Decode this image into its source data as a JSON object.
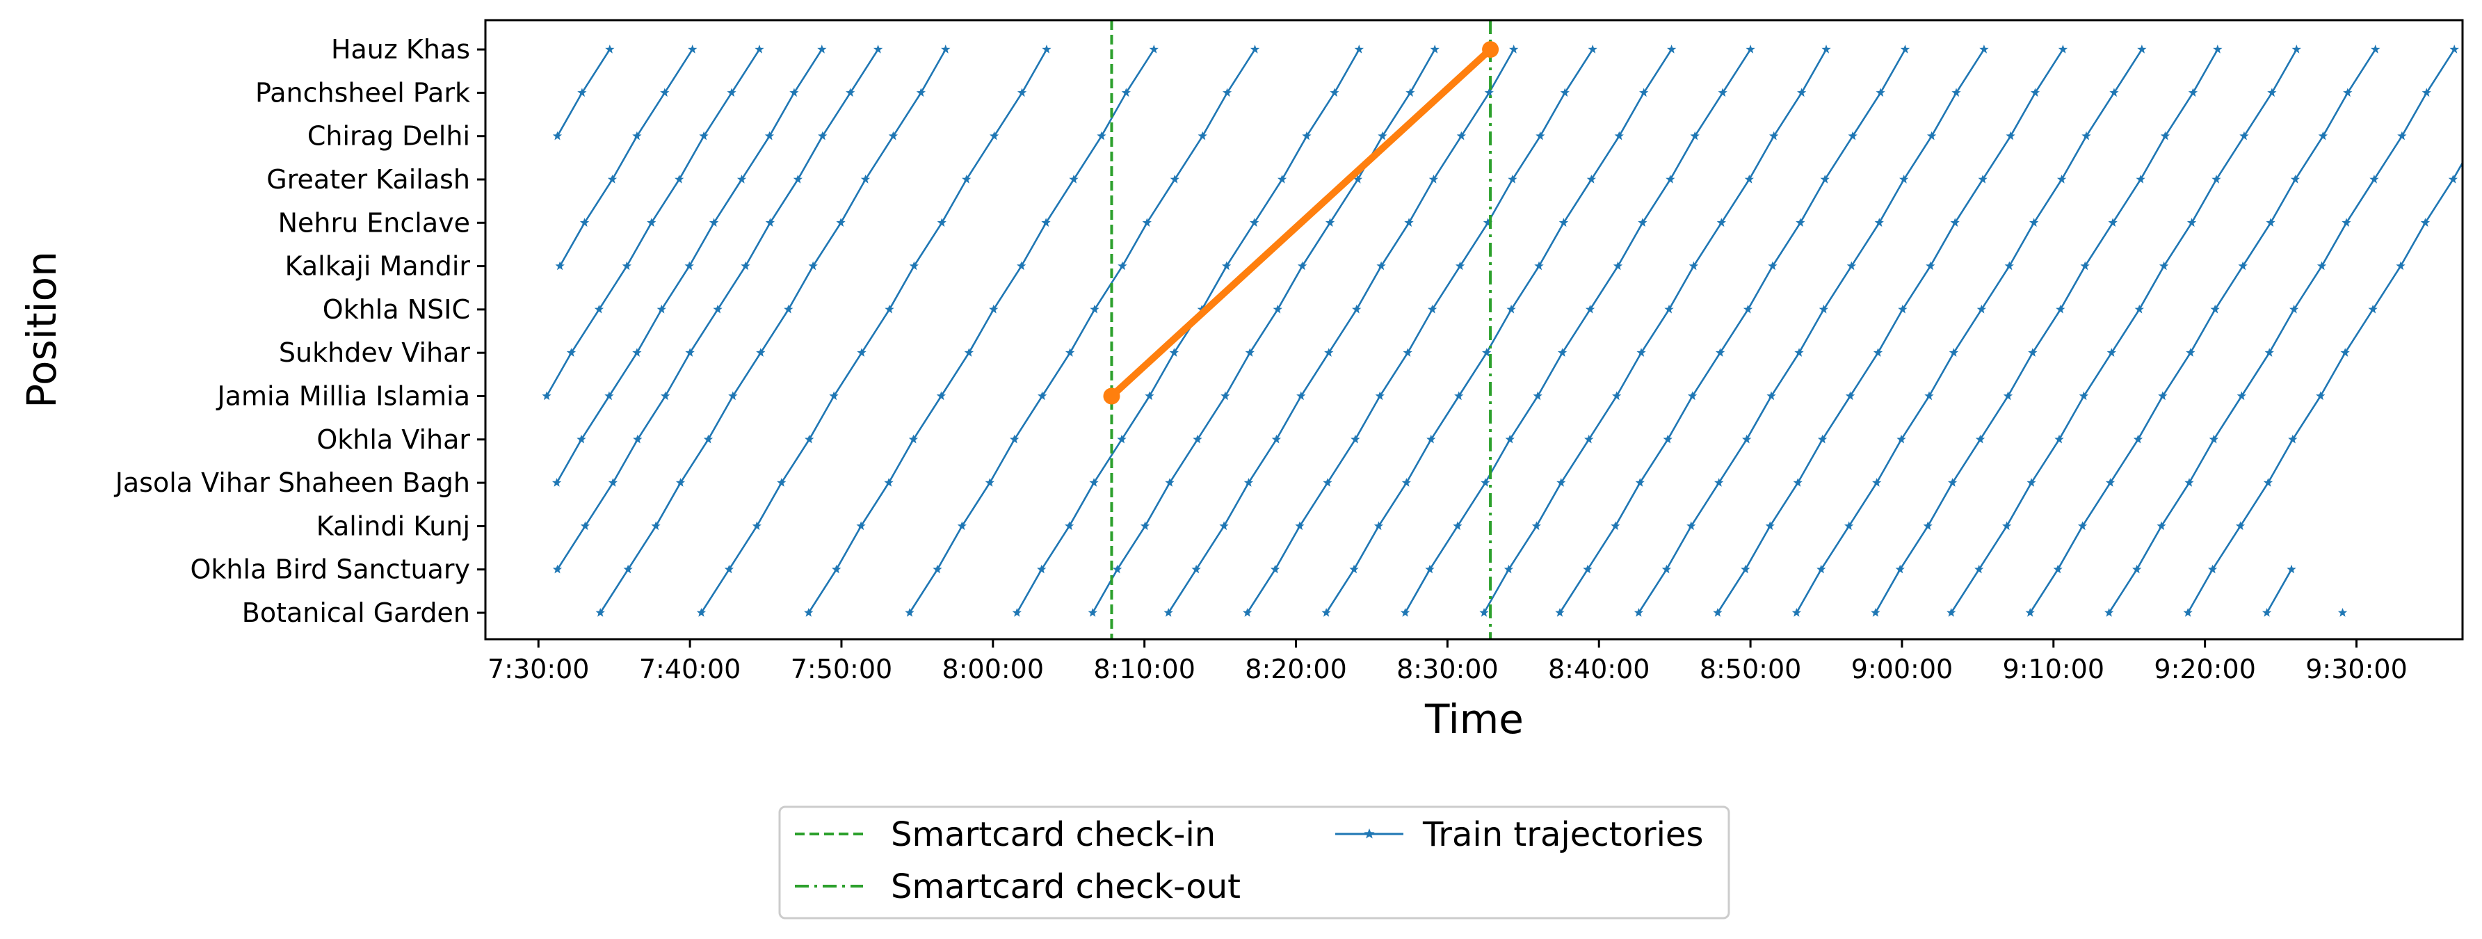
{
  "chart_data": {
    "type": "line",
    "title": "",
    "xlabel": "Time",
    "ylabel": "Position",
    "x_ticks": [
      "7:30:00",
      "7:40:00",
      "7:50:00",
      "8:00:00",
      "8:10:00",
      "8:20:00",
      "8:30:00",
      "8:40:00",
      "8:50:00",
      "9:00:00",
      "9:10:00",
      "9:20:00",
      "9:30:00"
    ],
    "xlim": [
      "7:26:30",
      "9:37:00"
    ],
    "stations": [
      "Botanical Garden",
      "Okhla Bird Sanctuary",
      "Kalindi Kunj",
      "Jasola Vihar Shaheen Bagh",
      "Okhla Vihar",
      "Jamia Millia Islamia",
      "Sukhdev Vihar",
      "Okhla NSIC",
      "Kalkaji Mandir",
      "Nehru Enclave",
      "Greater Kailash",
      "Chirag Delhi",
      "Panchsheel Park",
      "Hauz Khas"
    ],
    "legend": {
      "placement": "below",
      "entries": [
        "Smartcard check-in",
        "Smartcard check-out",
        "Train trajectories"
      ]
    },
    "check_in": {
      "time": "8:07:50",
      "station": "Jamia Millia Islamia",
      "color": "#2ca02c",
      "style": "dashed"
    },
    "check_out": {
      "time": "8:32:50",
      "station": "Hauz Khas",
      "color": "#2ca02c",
      "style": "dashdot"
    },
    "passenger_trip": {
      "color": "#ff7f0e",
      "from": [
        "8:07:50",
        "Jamia Millia Islamia"
      ],
      "to": [
        "8:32:50",
        "Hauz Khas"
      ]
    },
    "train_trajectories": {
      "color": "#1f77b4",
      "marker": "star",
      "segments": [
        {
          "start": "7:31:10",
          "from": "Chirag Delhi",
          "to": "Hauz Khas"
        },
        {
          "start": "7:31:20",
          "from": "Kalkaji Mandir",
          "to": "Hauz Khas"
        },
        {
          "start": "7:30:30",
          "from": "Jamia Millia Islamia",
          "to": "Hauz Khas"
        },
        {
          "start": "7:31:10",
          "from": "Jasola Vihar Shaheen Bagh",
          "to": "Hauz Khas"
        },
        {
          "start": "7:31:20",
          "from": "Okhla Bird Sanctuary",
          "to": "Hauz Khas"
        },
        {
          "start": "7:34:10",
          "from": "Botanical Garden",
          "to": "Hauz Khas"
        },
        {
          "start": "7:40:50",
          "from": "Botanical Garden",
          "to": "Hauz Khas"
        },
        {
          "start": "7:47:50",
          "from": "Botanical Garden",
          "to": "Hauz Khas"
        },
        {
          "start": "7:54:30",
          "from": "Botanical Garden",
          "to": "Hauz Khas"
        },
        {
          "start": "8:01:30",
          "from": "Botanical Garden",
          "to": "Hauz Khas"
        },
        {
          "start": "8:06:30",
          "from": "Botanical Garden",
          "to": "Hauz Khas"
        },
        {
          "start": "8:11:40",
          "from": "Botanical Garden",
          "to": "Hauz Khas"
        },
        {
          "start": "8:16:50",
          "from": "Botanical Garden",
          "to": "Hauz Khas"
        },
        {
          "start": "8:22:00",
          "from": "Botanical Garden",
          "to": "Hauz Khas"
        },
        {
          "start": "8:27:10",
          "from": "Botanical Garden",
          "to": "Hauz Khas"
        },
        {
          "start": "8:32:20",
          "from": "Botanical Garden",
          "to": "Hauz Khas"
        },
        {
          "start": "8:37:30",
          "from": "Botanical Garden",
          "to": "Hauz Khas"
        },
        {
          "start": "8:42:40",
          "from": "Botanical Garden",
          "to": "Hauz Khas"
        },
        {
          "start": "8:47:50",
          "from": "Botanical Garden",
          "to": "Hauz Khas"
        },
        {
          "start": "8:53:00",
          "from": "Botanical Garden",
          "to": "Hauz Khas"
        },
        {
          "start": "8:58:10",
          "from": "Botanical Garden",
          "to": "Hauz Khas"
        },
        {
          "start": "9:03:20",
          "from": "Botanical Garden",
          "to": "Hauz Khas"
        },
        {
          "start": "9:08:30",
          "from": "Botanical Garden",
          "to": "Hauz Khas"
        },
        {
          "start": "9:13:40",
          "from": "Botanical Garden",
          "to": "Hauz Khas"
        },
        {
          "start": "9:18:50",
          "from": "Botanical Garden",
          "to": "Hauz Khas"
        },
        {
          "start": "9:24:00",
          "from": "Botanical Garden",
          "to": "Okhla Bird Sanctuary"
        },
        {
          "start": "9:29:10",
          "from": "Botanical Garden",
          "to": "Botanical Garden"
        }
      ]
    }
  }
}
